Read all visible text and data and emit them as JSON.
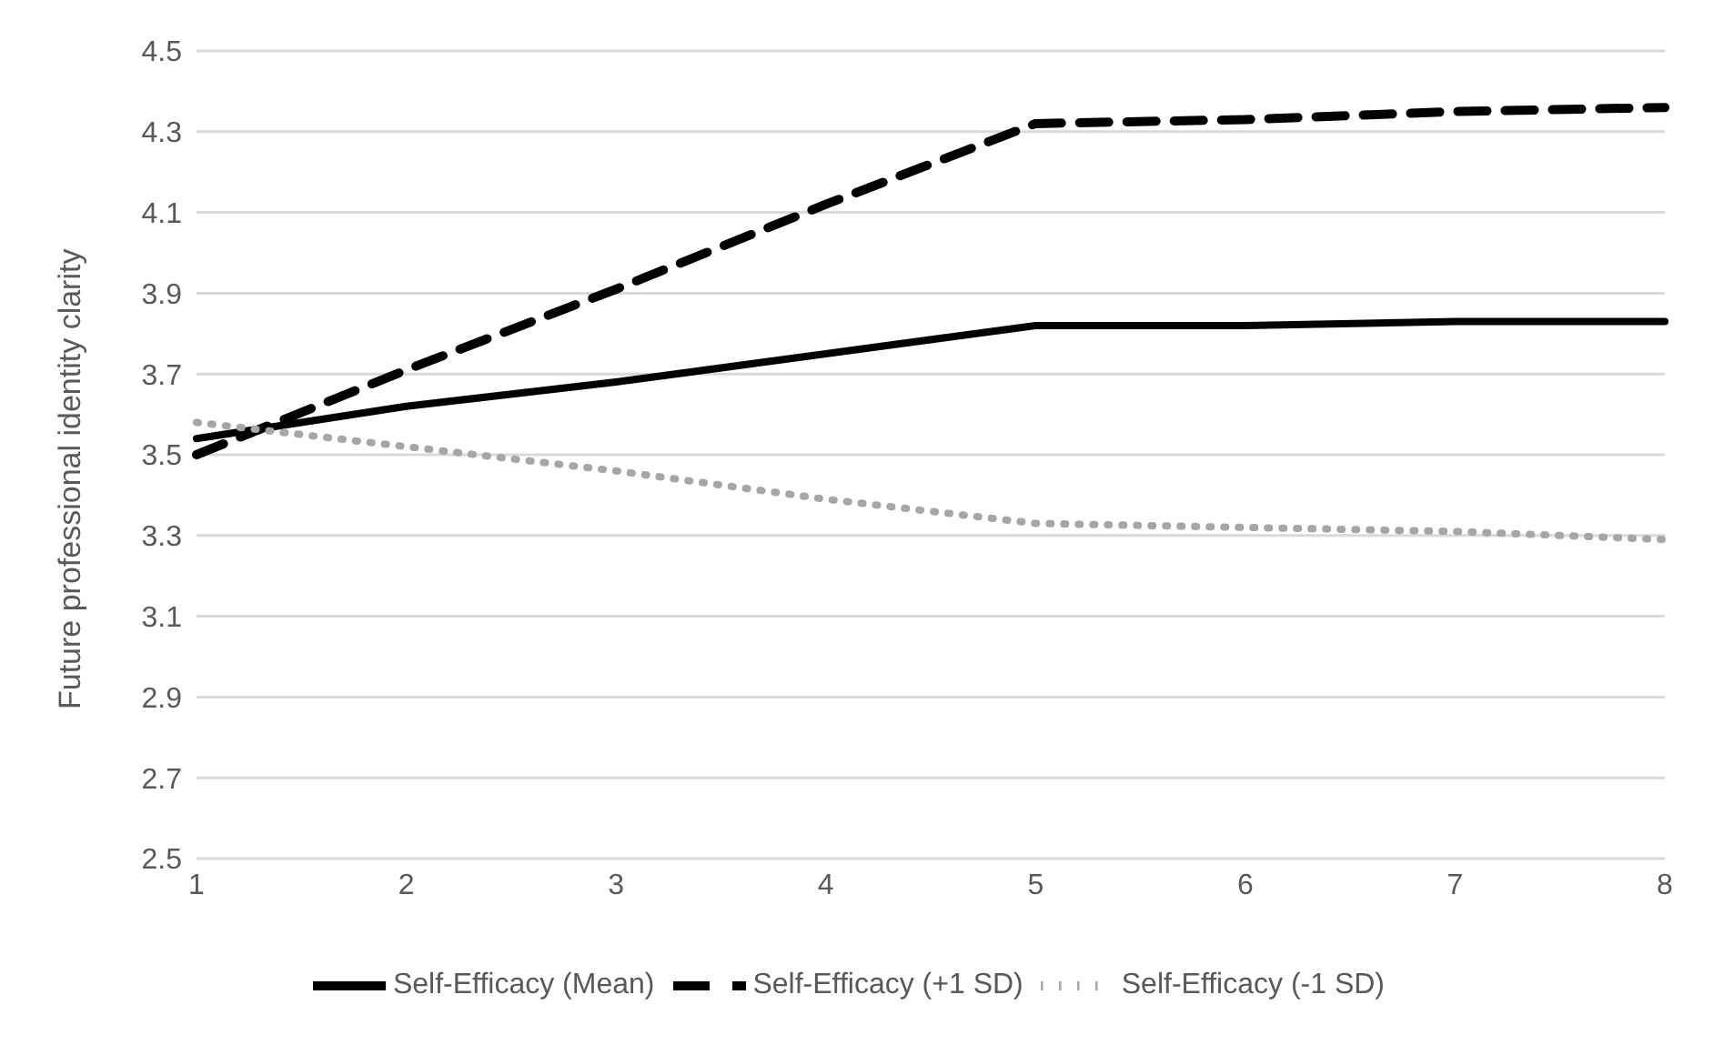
{
  "chart_data": {
    "type": "line",
    "ylabel": "Future professional identity clarity",
    "categories": [
      "1",
      "2",
      "3",
      "4",
      "5",
      "6",
      "7",
      "8"
    ],
    "series": [
      {
        "name": "Self-Efficacy (Mean)",
        "color": "#000000",
        "line_style": "solid",
        "values": [
          3.54,
          3.62,
          3.68,
          3.75,
          3.82,
          3.82,
          3.83,
          3.83
        ]
      },
      {
        "name": "Self-Efficacy (+1 SD)",
        "color": "#000000",
        "line_style": "dashed",
        "values": [
          3.5,
          3.71,
          3.91,
          4.12,
          4.32,
          4.33,
          4.35,
          4.36
        ]
      },
      {
        "name": "Self-Efficacy (-1 SD)",
        "color": "#a6a6a6",
        "line_style": "dotted",
        "values": [
          3.58,
          3.52,
          3.46,
          3.39,
          3.33,
          3.32,
          3.31,
          3.29
        ]
      }
    ],
    "ylim": [
      2.5,
      4.5
    ],
    "yticks": [
      {
        "value": 2.5,
        "label": "2.5"
      },
      {
        "value": 2.7,
        "label": "2.7"
      },
      {
        "value": 2.9,
        "label": "2.9"
      },
      {
        "value": 3.1,
        "label": "3.1"
      },
      {
        "value": 3.3,
        "label": "3.3"
      },
      {
        "value": 3.5,
        "label": "3.5"
      },
      {
        "value": 3.7,
        "label": "3.7"
      },
      {
        "value": 3.9,
        "label": "3.9"
      },
      {
        "value": 4.1,
        "label": "4.1"
      },
      {
        "value": 4.3,
        "label": "4.3"
      },
      {
        "value": 4.5,
        "label": "4.5"
      }
    ],
    "grid": "y",
    "legend": "bottom",
    "marker": "none"
  }
}
